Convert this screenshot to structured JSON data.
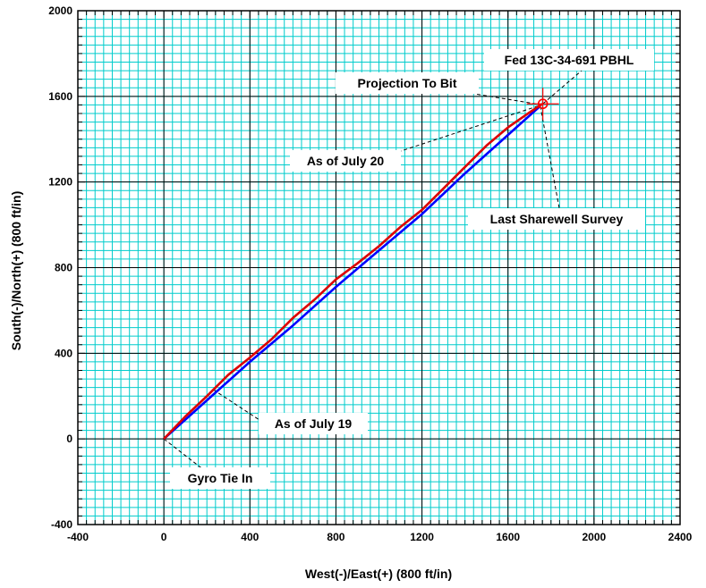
{
  "chart_data": {
    "type": "line",
    "xlabel": "West(-)/East(+) (800 ft/in)",
    "ylabel": "South(-)/North(+) (800 ft/in)",
    "xlim": [
      -400,
      2400
    ],
    "ylim": [
      -400,
      2000
    ],
    "x_ticks": [
      -400,
      0,
      400,
      800,
      1200,
      1600,
      2000,
      2400
    ],
    "y_ticks": [
      -400,
      0,
      400,
      800,
      1200,
      1600,
      2000
    ],
    "grid": true,
    "colors": {
      "minor_grid": "#00cccc",
      "major_grid": "#000000",
      "background": "#ffffff"
    },
    "series": [
      {
        "color": "#0000ff",
        "x": [
          0,
          200,
          400,
          600,
          800,
          1000,
          1200,
          1400,
          1600,
          1750
        ],
        "y": [
          0,
          180,
          360,
          530,
          710,
          880,
          1050,
          1240,
          1420,
          1555
        ]
      },
      {
        "color": "#dd0000",
        "x": [
          0,
          100,
          200,
          300,
          400,
          500,
          600,
          700,
          800,
          900,
          1000,
          1100,
          1200,
          1300,
          1400,
          1500,
          1600,
          1700,
          1760
        ],
        "y": [
          0,
          105,
          200,
          300,
          380,
          465,
          565,
          650,
          745,
          820,
          900,
          990,
          1070,
          1170,
          1270,
          1370,
          1455,
          1525,
          1565
        ]
      }
    ],
    "target": {
      "x": 1762,
      "y": 1565,
      "color": "#ff0000"
    },
    "annotations": [
      {
        "label": "Fed 13C-34-691 PBHL",
        "point": [
          1762,
          1565
        ]
      },
      {
        "label": "Projection To Bit",
        "point": [
          1760,
          1560
        ]
      },
      {
        "label": "As of July 20",
        "point": [
          1740,
          1555
        ]
      },
      {
        "label": "Last Sharewell Survey",
        "point": [
          1750,
          1555
        ]
      },
      {
        "label": "As of July 19",
        "point": [
          230,
          230
        ]
      },
      {
        "label": "Gyro Tie In",
        "point": [
          0,
          0
        ]
      }
    ]
  }
}
